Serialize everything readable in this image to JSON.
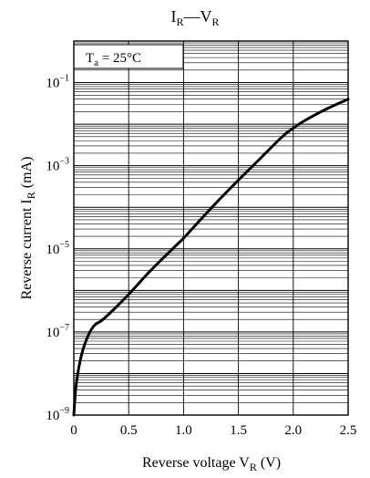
{
  "chart_data": {
    "type": "line",
    "title": {
      "main": "I",
      "main_sub": "R",
      "dash": "—",
      "second": "V",
      "second_sub": "R"
    },
    "annotation": {
      "prefix": "T",
      "sub": "a",
      "rest": " = 25°C"
    },
    "xlabel": {
      "text": "Reverse voltage  V",
      "sub": "R",
      "unit": "  (V)"
    },
    "ylabel": {
      "text": "Reverse current  I",
      "sub": "R",
      "unit": "  (mA)"
    },
    "x_scale": "linear",
    "y_scale": "log",
    "xlim": [
      0,
      2.5
    ],
    "ylim": [
      1e-09,
      1
    ],
    "x_ticks": [
      {
        "value": 0,
        "label": "0"
      },
      {
        "value": 0.5,
        "label": "0.5"
      },
      {
        "value": 1.0,
        "label": "1.0"
      },
      {
        "value": 1.5,
        "label": "1.5"
      },
      {
        "value": 2.0,
        "label": "2.0"
      },
      {
        "value": 2.5,
        "label": "2.5"
      }
    ],
    "y_ticks": [
      {
        "exp": -1,
        "base": "10",
        "sup": "−1"
      },
      {
        "exp": -3,
        "base": "10",
        "sup": "−3"
      },
      {
        "exp": -5,
        "base": "10",
        "sup": "−5"
      },
      {
        "exp": -7,
        "base": "10",
        "sup": "−7"
      },
      {
        "exp": -9,
        "base": "10",
        "sup": "−9"
      }
    ],
    "grid": true,
    "line_color": "#000000",
    "series": [
      {
        "x": [
          0.0,
          0.02,
          0.05,
          0.08,
          0.12,
          0.16,
          0.2,
          0.25,
          0.35,
          0.5,
          0.7,
          0.9,
          1.0,
          1.1,
          1.3,
          1.5,
          1.7,
          1.9,
          2.0,
          2.1,
          2.3,
          2.5
        ],
        "y": [
          1e-09,
          5e-09,
          1.6e-08,
          3.5e-08,
          7e-08,
          1.15e-07,
          1.55e-07,
          1.85e-07,
          3.2e-07,
          8e-07,
          3e-06,
          1e-05,
          1.8e-05,
          3.5e-05,
          0.00013,
          0.00045,
          0.0015,
          0.005,
          0.008,
          0.012,
          0.023,
          0.04
        ]
      }
    ]
  }
}
